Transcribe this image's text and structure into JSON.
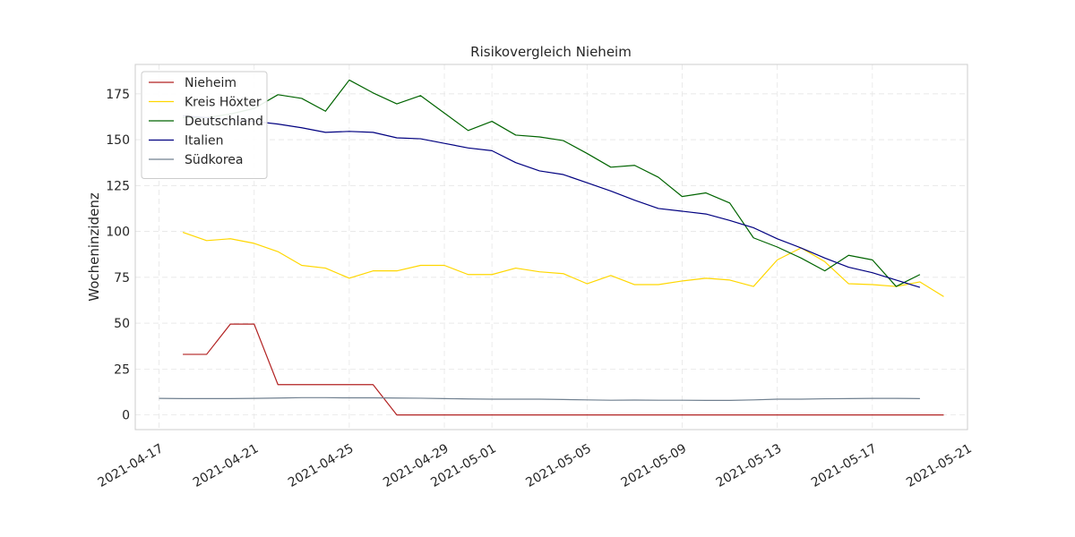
{
  "chart_data": {
    "type": "line",
    "title": "Risikovergleich Nieheim",
    "xlabel": "",
    "ylabel": "Wocheninzidenz",
    "x_range": [
      "2021-04-16",
      "2021-05-21"
    ],
    "ylim": [
      -8,
      191
    ],
    "x_ticks": [
      "2021-04-17",
      "2021-04-21",
      "2021-04-25",
      "2021-04-29",
      "2021-05-01",
      "2021-05-05",
      "2021-05-09",
      "2021-05-13",
      "2021-05-17",
      "2021-05-21"
    ],
    "y_ticks": [
      0,
      25,
      50,
      75,
      100,
      125,
      150,
      175
    ],
    "grid": true,
    "legend_position": "top-left",
    "series": [
      {
        "name": "Nieheim",
        "color": "#b22222",
        "x": [
          "2021-04-18",
          "2021-04-19",
          "2021-04-20",
          "2021-04-21",
          "2021-04-22",
          "2021-04-23",
          "2021-04-24",
          "2021-04-25",
          "2021-04-26",
          "2021-04-27",
          "2021-04-28",
          "2021-04-29",
          "2021-04-30",
          "2021-05-01",
          "2021-05-02",
          "2021-05-03",
          "2021-05-04",
          "2021-05-05",
          "2021-05-06",
          "2021-05-07",
          "2021-05-08",
          "2021-05-09",
          "2021-05-10",
          "2021-05-11",
          "2021-05-12",
          "2021-05-13",
          "2021-05-14",
          "2021-05-15",
          "2021-05-16",
          "2021-05-17",
          "2021-05-18",
          "2021-05-19",
          "2021-05-20"
        ],
        "values": [
          33,
          33,
          49.5,
          49.5,
          16.5,
          16.5,
          16.5,
          16.5,
          16.5,
          0,
          0,
          0,
          0,
          0,
          0,
          0,
          0,
          0,
          0,
          0,
          0,
          0,
          0,
          0,
          0,
          0,
          0,
          0,
          0,
          0,
          0,
          0,
          0
        ]
      },
      {
        "name": "Kreis Höxter",
        "color": "#ffd700",
        "x": [
          "2021-04-18",
          "2021-04-19",
          "2021-04-20",
          "2021-04-21",
          "2021-04-22",
          "2021-04-23",
          "2021-04-24",
          "2021-04-25",
          "2021-04-26",
          "2021-04-27",
          "2021-04-28",
          "2021-04-29",
          "2021-04-30",
          "2021-05-01",
          "2021-05-02",
          "2021-05-03",
          "2021-05-04",
          "2021-05-05",
          "2021-05-06",
          "2021-05-07",
          "2021-05-08",
          "2021-05-09",
          "2021-05-10",
          "2021-05-11",
          "2021-05-12",
          "2021-05-13",
          "2021-05-14",
          "2021-05-15",
          "2021-05-16",
          "2021-05-17",
          "2021-05-18",
          "2021-05-19",
          "2021-05-20"
        ],
        "values": [
          99.5,
          95,
          96,
          93.5,
          89,
          81.5,
          80,
          74.5,
          78.5,
          78.5,
          81.5,
          81.5,
          76.5,
          76.5,
          80,
          78,
          77,
          71.5,
          76,
          71,
          71,
          73,
          74.5,
          73.5,
          70,
          84.5,
          91,
          83.5,
          71.5,
          71,
          70,
          72.5,
          64.5
        ]
      },
      {
        "name": "Deutschland",
        "color": "#006400",
        "x": [
          "2021-04-18",
          "2021-04-19",
          "2021-04-20",
          "2021-04-21",
          "2021-04-22",
          "2021-04-23",
          "2021-04-24",
          "2021-04-25",
          "2021-04-26",
          "2021-04-27",
          "2021-04-28",
          "2021-04-29",
          "2021-04-30",
          "2021-05-01",
          "2021-05-02",
          "2021-05-03",
          "2021-05-04",
          "2021-05-05",
          "2021-05-06",
          "2021-05-07",
          "2021-05-08",
          "2021-05-09",
          "2021-05-10",
          "2021-05-11",
          "2021-05-12",
          "2021-05-13",
          "2021-05-14",
          "2021-05-15",
          "2021-05-16",
          "2021-05-17",
          "2021-05-18",
          "2021-05-19"
        ],
        "values": [
          162,
          162,
          164,
          167,
          174.5,
          172.5,
          165.5,
          182.5,
          175.5,
          169.5,
          174,
          164.5,
          155,
          160,
          152.5,
          151.5,
          149.5,
          142.5,
          135,
          136,
          129.5,
          119,
          121,
          115.5,
          96.5,
          91.5,
          85.5,
          78.5,
          87,
          84.5,
          70,
          76.5
        ]
      },
      {
        "name": "Italien",
        "color": "#000080",
        "x": [
          "2021-04-18",
          "2021-04-19",
          "2021-04-20",
          "2021-04-21",
          "2021-04-22",
          "2021-04-23",
          "2021-04-24",
          "2021-04-25",
          "2021-04-26",
          "2021-04-27",
          "2021-04-28",
          "2021-04-29",
          "2021-04-30",
          "2021-05-01",
          "2021-05-02",
          "2021-05-03",
          "2021-05-04",
          "2021-05-05",
          "2021-05-06",
          "2021-05-07",
          "2021-05-08",
          "2021-05-09",
          "2021-05-10",
          "2021-05-11",
          "2021-05-12",
          "2021-05-13",
          "2021-05-14",
          "2021-05-15",
          "2021-05-16",
          "2021-05-17",
          "2021-05-18",
          "2021-05-19"
        ],
        "values": [
          163,
          162,
          161,
          160,
          158.5,
          156.5,
          154,
          154.5,
          154,
          151,
          150.5,
          148,
          145.5,
          144,
          137.5,
          133,
          131,
          126.5,
          122,
          117,
          112.5,
          111,
          109.5,
          106,
          102,
          96,
          91,
          85.5,
          80.5,
          77.5,
          73.5,
          69.5
        ]
      },
      {
        "name": "Südkorea",
        "color": "#708090",
        "x": [
          "2021-04-17",
          "2021-04-18",
          "2021-04-19",
          "2021-04-20",
          "2021-04-21",
          "2021-04-22",
          "2021-04-23",
          "2021-04-24",
          "2021-04-25",
          "2021-04-26",
          "2021-04-27",
          "2021-04-28",
          "2021-04-29",
          "2021-04-30",
          "2021-05-01",
          "2021-05-02",
          "2021-05-03",
          "2021-05-04",
          "2021-05-05",
          "2021-05-06",
          "2021-05-07",
          "2021-05-08",
          "2021-05-09",
          "2021-05-10",
          "2021-05-11",
          "2021-05-12",
          "2021-05-13",
          "2021-05-14",
          "2021-05-15",
          "2021-05-16",
          "2021-05-17",
          "2021-05-18",
          "2021-05-19"
        ],
        "values": [
          9,
          8.9,
          8.9,
          8.9,
          9,
          9.2,
          9.4,
          9.4,
          9.3,
          9.3,
          9.2,
          9.1,
          8.9,
          8.7,
          8.6,
          8.6,
          8.6,
          8.4,
          8.2,
          8,
          8.1,
          8,
          8,
          7.9,
          7.9,
          8.2,
          8.6,
          8.6,
          8.8,
          8.9,
          9,
          9,
          8.9
        ]
      }
    ]
  }
}
